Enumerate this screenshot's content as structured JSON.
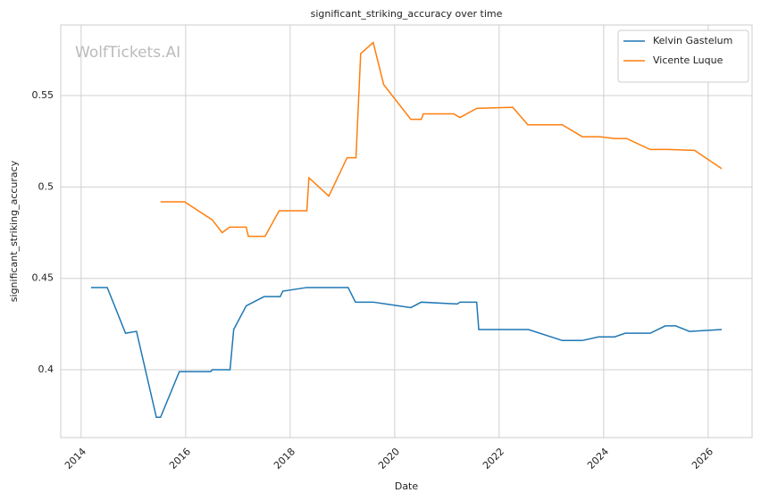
{
  "chart_data": {
    "type": "line",
    "title": "significant_striking_accuracy over time",
    "x_label": "Date",
    "y_label": "significant_striking_accuracy",
    "watermark": "WolfTickets.AI",
    "xlim": [
      2013.61,
      2026.84
    ],
    "xticks": [
      2014,
      2016,
      2018,
      2020,
      2022,
      2024,
      2026
    ],
    "ylim": [
      0.3629,
      0.5886
    ],
    "yticks": [
      0.4,
      0.45,
      0.5,
      0.55
    ],
    "grid": true,
    "legend": "upper right",
    "series": [
      {
        "name": "Kelvin Gastelum",
        "color": "#1f77b4",
        "x": [
          2014.19,
          2014.5,
          2014.85,
          2015.06,
          2015.44,
          2015.52,
          2015.88,
          2016.48,
          2016.51,
          2016.85,
          2016.92,
          2017.16,
          2017.5,
          2017.81,
          2017.86,
          2018.32,
          2019.11,
          2019.25,
          2019.59,
          2019.83,
          2020.31,
          2020.51,
          2021.2,
          2021.25,
          2021.57,
          2021.61,
          2022.56,
          2023.21,
          2023.59,
          2023.9,
          2024.21,
          2024.41,
          2024.89,
          2025.18,
          2025.38,
          2025.64,
          2026.26
        ],
        "values": [
          0.445,
          0.445,
          0.42,
          0.421,
          0.374,
          0.374,
          0.399,
          0.399,
          0.4,
          0.4,
          0.422,
          0.435,
          0.44,
          0.44,
          0.443,
          0.445,
          0.445,
          0.437,
          0.437,
          0.436,
          0.434,
          0.437,
          0.436,
          0.437,
          0.437,
          0.422,
          0.422,
          0.416,
          0.416,
          0.418,
          0.418,
          0.42,
          0.42,
          0.424,
          0.424,
          0.421,
          0.422
        ]
      },
      {
        "name": "Vicente Luque",
        "color": "#ff7f0e",
        "x": [
          2015.52,
          2015.98,
          2016.51,
          2016.7,
          2016.84,
          2017.16,
          2017.2,
          2017.52,
          2017.79,
          2018.32,
          2018.36,
          2018.74,
          2019.09,
          2019.26,
          2019.35,
          2019.59,
          2019.79,
          2020.31,
          2020.51,
          2020.55,
          2021.13,
          2021.25,
          2021.57,
          2022.26,
          2022.55,
          2023.21,
          2023.59,
          2023.93,
          2024.21,
          2024.44,
          2024.89,
          2025.23,
          2025.74,
          2026.26
        ],
        "values": [
          0.4919,
          0.4919,
          0.482,
          0.475,
          0.478,
          0.478,
          0.473,
          0.473,
          0.487,
          0.487,
          0.505,
          0.495,
          0.516,
          0.516,
          0.573,
          0.579,
          0.556,
          0.537,
          0.537,
          0.54,
          0.54,
          0.538,
          0.543,
          0.5436,
          0.534,
          0.534,
          0.5275,
          0.5275,
          0.5265,
          0.5265,
          0.5205,
          0.5205,
          0.52,
          0.51
        ]
      }
    ]
  }
}
